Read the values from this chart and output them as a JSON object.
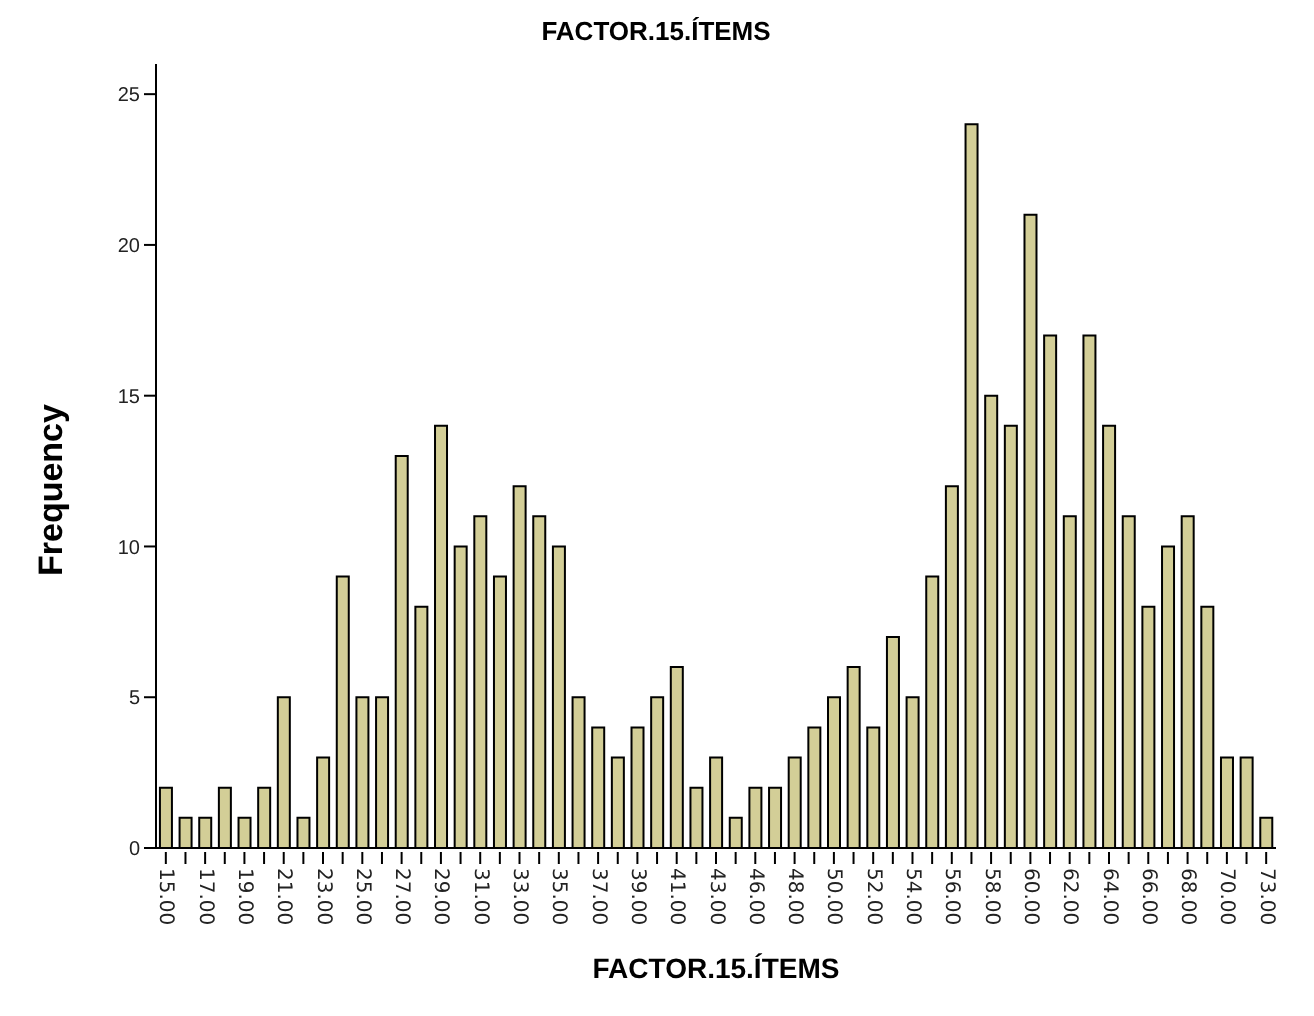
{
  "chart_data": {
    "type": "bar",
    "title": "FACTOR.15.ÍTEMS",
    "xlabel": "FACTOR.15.ÍTEMS",
    "ylabel": "Frequency",
    "categories": [
      "15.00",
      null,
      "17.00",
      null,
      "19.00",
      null,
      "21.00",
      null,
      "23.00",
      null,
      "25.00",
      null,
      "27.00",
      null,
      "29.00",
      null,
      "31.00",
      null,
      "33.00",
      null,
      "35.00",
      null,
      "37.00",
      null,
      "39.00",
      null,
      "41.00",
      null,
      "43.00",
      null,
      "46.00",
      null,
      "48.00",
      null,
      "50.00",
      null,
      "52.00",
      null,
      "54.00",
      null,
      "56.00",
      null,
      "58.00",
      null,
      "60.00",
      null,
      "62.00",
      null,
      "64.00",
      null,
      "66.00",
      null,
      "68.00",
      null,
      "70.00",
      null,
      "73.00"
    ],
    "values": [
      2,
      1,
      1,
      2,
      1,
      2,
      5,
      1,
      3,
      9,
      5,
      5,
      13,
      8,
      14,
      10,
      11,
      9,
      12,
      11,
      10,
      5,
      4,
      3,
      4,
      5,
      6,
      2,
      3,
      1,
      2,
      2,
      3,
      4,
      5,
      6,
      4,
      7,
      5,
      9,
      12,
      24,
      15,
      14,
      21,
      17,
      11,
      17,
      14,
      11,
      8,
      10,
      11,
      8,
      3,
      3,
      1
    ],
    "color": "#d3ce97",
    "ylim": [
      0,
      26
    ],
    "yticks": [
      0,
      5,
      10,
      15,
      20,
      25
    ],
    "grid": false
  }
}
